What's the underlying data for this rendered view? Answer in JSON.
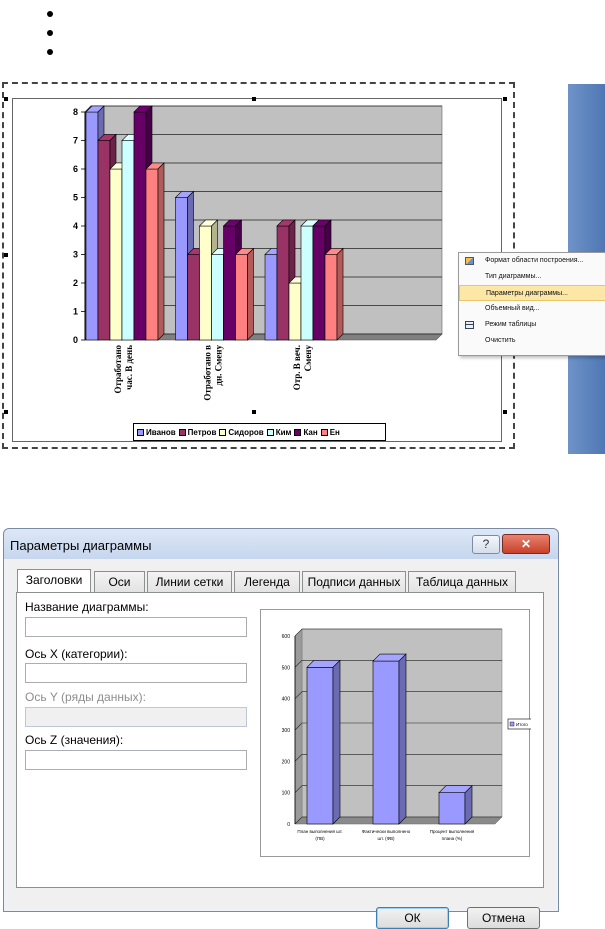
{
  "colors": {
    "ivanov": "#9999ff",
    "petrov": "#993366",
    "sidorov": "#ffffcc",
    "kim": "#ccffff",
    "kan": "#660066",
    "en": "#ff8080",
    "plot_bg": "#c0c0c0",
    "preview_bar": "#9999ff"
  },
  "main_chart": {
    "chart_data": {
      "type": "bar",
      "categories": [
        "Отработано час. В день",
        "Отработано в дн. Смену",
        "Отр. В веч. Смену"
      ],
      "category_lines": [
        [
          "Отработано",
          "час. В день"
        ],
        [
          "Отработано в",
          "дн. Смену"
        ],
        [
          "Отр. В веч.",
          "Смену"
        ]
      ],
      "series": [
        {
          "name": "Иванов",
          "values": [
            8,
            5,
            3
          ]
        },
        {
          "name": "Петров",
          "values": [
            7,
            3,
            4
          ]
        },
        {
          "name": "Сидоров",
          "values": [
            6,
            4,
            2
          ]
        },
        {
          "name": "Ким",
          "values": [
            7,
            3,
            4
          ]
        },
        {
          "name": "Кан",
          "values": [
            8,
            4,
            4
          ]
        },
        {
          "name": "Ен",
          "values": [
            6,
            3,
            3
          ]
        }
      ],
      "ylim": [
        0,
        8
      ],
      "yticks": [
        "0",
        "1",
        "2",
        "3",
        "4",
        "5",
        "6",
        "7",
        "8"
      ],
      "grid": true,
      "legend": "bottom"
    }
  },
  "context_menu": {
    "items": [
      {
        "label": "Формат области построения...",
        "icon": "format-plot-icon"
      },
      {
        "label": "Тип диаграммы...",
        "icon": ""
      },
      {
        "label": "Параметры диаграммы...",
        "icon": "",
        "highlight": true
      },
      {
        "label": "Объемный вид...",
        "icon": ""
      },
      {
        "label": "Режим таблицы",
        "icon": "table-icon"
      },
      {
        "label": "Очистить",
        "icon": ""
      }
    ]
  },
  "dialog": {
    "title": "Параметры диаграммы",
    "help": "?",
    "close": "✕",
    "tabs": [
      "Заголовки",
      "Оси",
      "Линии сетки",
      "Легенда",
      "Подписи данных",
      "Таблица данных"
    ],
    "fields": [
      {
        "label": "Название диаграммы:",
        "value": "",
        "disabled": false
      },
      {
        "label": "Ось X (категории):",
        "value": "",
        "disabled": false
      },
      {
        "label": "Ось Y (ряды данных):",
        "value": "",
        "disabled": true
      },
      {
        "label": "Ось Z (значения):",
        "value": "",
        "disabled": false
      }
    ],
    "ok": "ОК",
    "cancel": "Отмена",
    "preview_chart": {
      "chart_data": {
        "type": "bar",
        "categories": [
          "План выполнения шт. (ПВ)",
          "Фактически выполнено шт. (ФВ)",
          "Процент выполнения плана (%)"
        ],
        "category_lines": [
          [
            "План выполнения шт.",
            "(ПВ)"
          ],
          [
            "Фактически выполнено",
            "шт. (ФВ)"
          ],
          [
            "Процент выполнения",
            "плана (%)"
          ]
        ],
        "series": [
          {
            "name": "Итого",
            "values": [
              500,
              520,
              100
            ]
          }
        ],
        "ylim": [
          0,
          600
        ],
        "yticks": [
          "0",
          "100",
          "200",
          "300",
          "400",
          "500",
          "600"
        ],
        "legend": "right"
      }
    }
  }
}
